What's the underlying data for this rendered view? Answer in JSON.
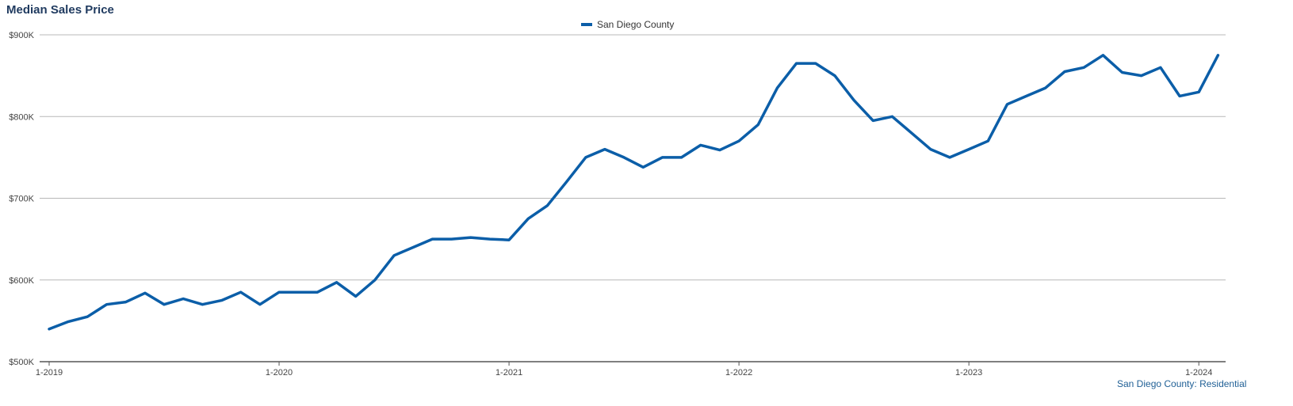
{
  "chart_data": {
    "type": "line",
    "title": "Median Sales Price",
    "xlabel": "",
    "ylabel": "",
    "x_tick_labels": [
      "1-2019",
      "1-2020",
      "1-2021",
      "1-2022",
      "1-2023",
      "1-2024"
    ],
    "y_tick_labels": [
      "$500K",
      "$600K",
      "$700K",
      "$800K",
      "$900K"
    ],
    "y_ticks": [
      500000,
      600000,
      700000,
      800000,
      900000
    ],
    "ylim": [
      500000,
      900000
    ],
    "grid": true,
    "legend_position": "top-center",
    "x": [
      "2019-01",
      "2019-02",
      "2019-03",
      "2019-04",
      "2019-05",
      "2019-06",
      "2019-07",
      "2019-08",
      "2019-09",
      "2019-10",
      "2019-11",
      "2019-12",
      "2020-01",
      "2020-02",
      "2020-03",
      "2020-04",
      "2020-05",
      "2020-06",
      "2020-07",
      "2020-08",
      "2020-09",
      "2020-10",
      "2020-11",
      "2020-12",
      "2021-01",
      "2021-02",
      "2021-03",
      "2021-04",
      "2021-05",
      "2021-06",
      "2021-07",
      "2021-08",
      "2021-09",
      "2021-10",
      "2021-11",
      "2021-12",
      "2022-01",
      "2022-02",
      "2022-03",
      "2022-04",
      "2022-05",
      "2022-06",
      "2022-07",
      "2022-08",
      "2022-09",
      "2022-10",
      "2022-11",
      "2022-12",
      "2023-01",
      "2023-02",
      "2023-03",
      "2023-04",
      "2023-05",
      "2023-06",
      "2023-07",
      "2023-08",
      "2023-09",
      "2023-10",
      "2023-11",
      "2023-12",
      "2024-01",
      "2024-02"
    ],
    "series": [
      {
        "name": "San Diego County",
        "color": "#0b5ea8",
        "values": [
          540000,
          549000,
          555000,
          570000,
          573000,
          584000,
          570000,
          577000,
          570000,
          575000,
          585000,
          570000,
          585000,
          585000,
          585000,
          597000,
          580000,
          600000,
          630000,
          640000,
          650000,
          650000,
          652000,
          650000,
          649000,
          675000,
          691000,
          720000,
          750000,
          760000,
          750000,
          738000,
          750000,
          750000,
          765000,
          759000,
          770000,
          790000,
          835000,
          865000,
          865000,
          850000,
          820000,
          795000,
          800000,
          780000,
          760000,
          750000,
          760000,
          770000,
          815000,
          825000,
          835000,
          855000,
          860000,
          875000,
          854000,
          850000,
          860000,
          825000,
          830000,
          875000
        ]
      }
    ]
  },
  "source_note": "San Diego County: Residential"
}
